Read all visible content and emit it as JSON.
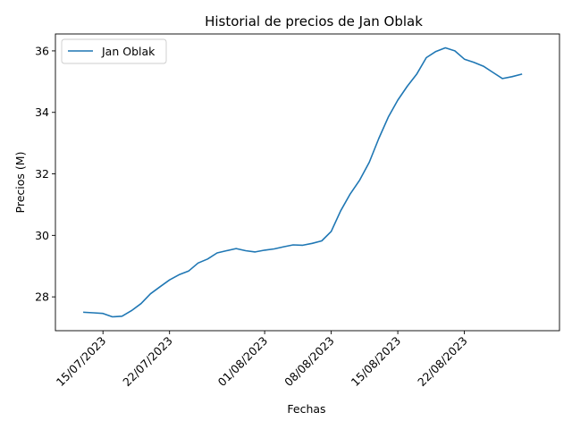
{
  "chart_data": {
    "type": "line",
    "title": "Historial de precios de Jan Oblak",
    "xlabel": "Fechas",
    "ylabel": "Precios (M)",
    "x_tick_labels": [
      "15/07/2023",
      "22/07/2023",
      "01/08/2023",
      "08/08/2023",
      "15/08/2023",
      "22/08/2023"
    ],
    "x_tick_dates": [
      "2023-07-15",
      "2023-07-22",
      "2023-08-01",
      "2023-08-08",
      "2023-08-15",
      "2023-08-22"
    ],
    "y_ticks": [
      28,
      30,
      32,
      34,
      36
    ],
    "xlim": [
      "2023-07-10",
      "2023-09-01"
    ],
    "ylim": [
      26.9,
      36.55
    ],
    "legend_position": "upper left",
    "series": [
      {
        "name": "Jan Oblak",
        "color": "#1f77b4",
        "x": [
          "2023-07-13",
          "2023-07-14",
          "2023-07-15",
          "2023-07-16",
          "2023-07-17",
          "2023-07-18",
          "2023-07-19",
          "2023-07-20",
          "2023-07-21",
          "2023-07-22",
          "2023-07-23",
          "2023-07-24",
          "2023-07-25",
          "2023-07-26",
          "2023-07-27",
          "2023-07-28",
          "2023-07-29",
          "2023-07-30",
          "2023-07-31",
          "2023-08-01",
          "2023-08-02",
          "2023-08-03",
          "2023-08-04",
          "2023-08-05",
          "2023-08-06",
          "2023-08-07",
          "2023-08-08",
          "2023-08-09",
          "2023-08-10",
          "2023-08-11",
          "2023-08-12",
          "2023-08-13",
          "2023-08-14",
          "2023-08-15",
          "2023-08-16",
          "2023-08-17",
          "2023-08-18",
          "2023-08-19",
          "2023-08-20",
          "2023-08-21",
          "2023-08-22",
          "2023-08-23",
          "2023-08-24",
          "2023-08-25",
          "2023-08-26",
          "2023-08-27",
          "2023-08-28"
        ],
        "y": [
          27.5,
          27.48,
          27.46,
          27.35,
          27.37,
          27.55,
          27.78,
          28.1,
          28.33,
          28.55,
          28.72,
          28.84,
          29.1,
          29.23,
          29.43,
          29.5,
          29.57,
          29.5,
          29.46,
          29.52,
          29.56,
          29.63,
          29.69,
          29.68,
          29.74,
          29.82,
          30.13,
          30.8,
          31.35,
          31.8,
          32.38,
          33.15,
          33.85,
          34.4,
          34.85,
          35.25,
          35.78,
          35.98,
          36.1,
          36.0,
          35.73,
          35.63,
          35.5,
          35.3,
          35.1,
          35.16,
          35.24
        ]
      }
    ]
  }
}
